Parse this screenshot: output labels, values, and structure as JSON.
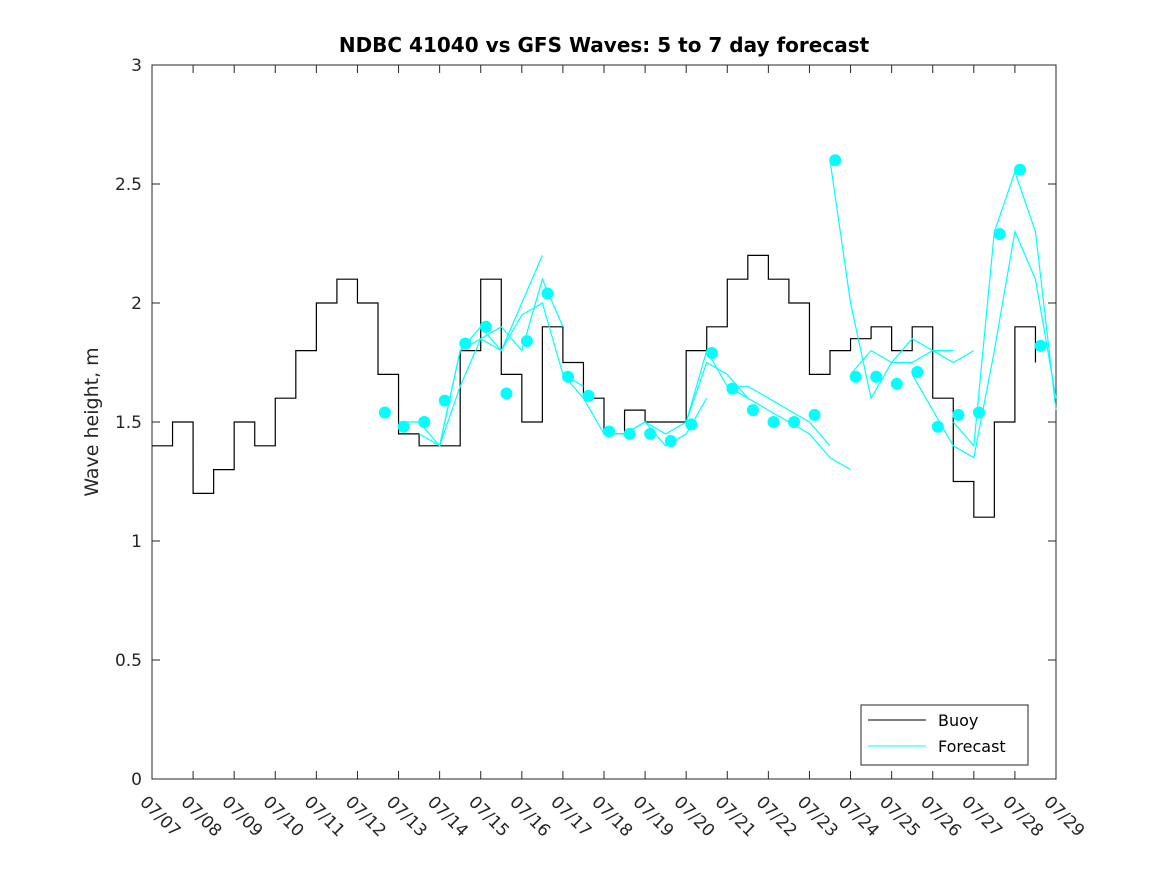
{
  "chart_data": {
    "type": "line",
    "title": "NDBC 41040 vs GFS Waves: 5 to 7 day forecast",
    "xlabel": "",
    "ylabel": "Wave height, m",
    "xlim": [
      "07/07",
      "07/29"
    ],
    "ylim": [
      0,
      3
    ],
    "x_tick_labels": [
      "07/07",
      "07/08",
      "07/09",
      "07/10",
      "07/11",
      "07/12",
      "07/13",
      "07/14",
      "07/15",
      "07/16",
      "07/17",
      "07/18",
      "07/19",
      "07/20",
      "07/21",
      "07/22",
      "07/23",
      "07/24",
      "07/25",
      "07/26",
      "07/27",
      "07/28",
      "07/29"
    ],
    "y_tick_labels": [
      "0",
      "0.5",
      "1",
      "1.5",
      "2",
      "2.5",
      "3"
    ],
    "grid": false,
    "legend": {
      "position": "bottom-right",
      "entries": [
        "Buoy",
        "Forecast"
      ]
    },
    "colors": {
      "buoy": "#000000",
      "forecast": "#00ffff"
    },
    "series": [
      {
        "name": "Buoy",
        "x": [
          "07/07 00:00",
          "07/07 12:00",
          "07/08 00:00",
          "07/08 12:00",
          "07/09 00:00",
          "07/09 12:00",
          "07/10 00:00",
          "07/10 12:00",
          "07/11 00:00",
          "07/11 12:00",
          "07/12 00:00",
          "07/12 12:00",
          "07/13 00:00",
          "07/13 12:00",
          "07/14 00:00",
          "07/14 12:00",
          "07/15 00:00",
          "07/15 12:00",
          "07/16 00:00",
          "07/16 12:00",
          "07/17 00:00",
          "07/17 12:00",
          "07/18 00:00",
          "07/18 12:00",
          "07/19 00:00",
          "07/19 12:00",
          "07/20 00:00",
          "07/20 12:00",
          "07/21 00:00",
          "07/21 12:00",
          "07/22 00:00",
          "07/22 12:00",
          "07/23 00:00",
          "07/23 12:00",
          "07/24 00:00",
          "07/24 12:00",
          "07/25 00:00",
          "07/25 12:00",
          "07/26 00:00",
          "07/26 12:00",
          "07/27 00:00",
          "07/27 12:00",
          "07/28 00:00",
          "07/28 12:00"
        ],
        "y": [
          1.4,
          1.5,
          1.2,
          1.3,
          1.5,
          1.4,
          1.6,
          1.8,
          2.0,
          2.1,
          2.0,
          1.7,
          1.45,
          1.4,
          1.4,
          1.8,
          2.1,
          1.7,
          1.5,
          1.9,
          1.75,
          1.6,
          1.45,
          1.55,
          1.5,
          1.5,
          1.8,
          1.9,
          2.1,
          2.2,
          2.1,
          2.0,
          1.7,
          1.8,
          1.85,
          1.9,
          1.8,
          1.9,
          1.6,
          1.25,
          1.1,
          1.5,
          1.9,
          1.75
        ]
      },
      {
        "name": "Forecast",
        "runs": [
          {
            "x": [
              "07/13 00:00",
              "07/13 12:00",
              "07/14 00:00",
              "07/14 12:00",
              "07/15 00:00",
              "07/15 12:00",
              "07/16 00:00",
              "07/16 12:00"
            ],
            "y": [
              1.5,
              1.5,
              1.4,
              1.8,
              1.85,
              1.8,
              2.0,
              2.2
            ]
          },
          {
            "x": [
              "07/13 12:00",
              "07/14 00:00",
              "07/14 12:00",
              "07/15 00:00",
              "07/15 12:00",
              "07/16 00:00",
              "07/16 12:00",
              "07/17 00:00"
            ],
            "y": [
              1.45,
              1.4,
              1.65,
              1.85,
              1.9,
              1.8,
              2.1,
              1.9
            ]
          },
          {
            "x": [
              "07/14 00:00",
              "07/14 12:00",
              "07/15 00:00",
              "07/15 12:00",
              "07/16 00:00",
              "07/16 12:00",
              "07/17 00:00",
              "07/17 12:00"
            ],
            "y": [
              1.4,
              1.8,
              1.9,
              1.8,
              1.95,
              2.0,
              1.7,
              1.65
            ]
          },
          {
            "x": [
              "07/17 00:00",
              "07/17 12:00",
              "07/18 00:00",
              "07/18 12:00",
              "07/19 00:00",
              "07/19 12:00",
              "07/20 00:00",
              "07/20 12:00"
            ],
            "y": [
              1.7,
              1.6,
              1.45,
              1.45,
              1.5,
              1.4,
              1.45,
              1.6
            ]
          },
          {
            "x": [
              "07/18 00:00",
              "07/18 12:00",
              "07/19 00:00",
              "07/19 12:00",
              "07/20 00:00",
              "07/20 12:00",
              "07/21 00:00",
              "07/21 12:00"
            ],
            "y": [
              1.45,
              1.45,
              1.5,
              1.45,
              1.5,
              1.75,
              1.7,
              1.6
            ]
          },
          {
            "x": [
              "07/20 00:00",
              "07/20 12:00",
              "07/21 00:00",
              "07/21 12:00",
              "07/22 00:00",
              "07/22 12:00",
              "07/23 00:00",
              "07/23 12:00"
            ],
            "y": [
              1.5,
              1.8,
              1.65,
              1.65,
              1.6,
              1.55,
              1.5,
              1.4
            ]
          },
          {
            "x": [
              "07/21 00:00",
              "07/21 12:00",
              "07/22 00:00",
              "07/22 12:00",
              "07/23 00:00",
              "07/23 12:00",
              "07/24 00:00"
            ],
            "y": [
              1.65,
              1.6,
              1.55,
              1.5,
              1.45,
              1.35,
              1.3
            ]
          },
          {
            "x": [
              "07/23 12:00",
              "07/24 00:00",
              "07/24 12:00",
              "07/25 00:00",
              "07/25 12:00",
              "07/26 00:00",
              "07/26 12:00"
            ],
            "y": [
              2.6,
              2.0,
              1.6,
              1.75,
              1.75,
              1.8,
              1.8
            ]
          },
          {
            "x": [
              "07/24 00:00",
              "07/24 12:00",
              "07/25 00:00",
              "07/25 12:00",
              "07/26 00:00",
              "07/26 12:00",
              "07/27 00:00"
            ],
            "y": [
              1.7,
              1.8,
              1.75,
              1.85,
              1.8,
              1.75,
              1.8
            ]
          },
          {
            "x": [
              "07/25 12:00",
              "07/26 00:00",
              "07/26 12:00",
              "07/27 00:00",
              "07/27 12:00",
              "07/28 00:00",
              "07/28 12:00",
              "07/29 00:00"
            ],
            "y": [
              1.7,
              1.55,
              1.4,
              1.35,
              1.8,
              2.3,
              2.1,
              1.6
            ]
          },
          {
            "x": [
              "07/26 12:00",
              "07/27 00:00",
              "07/27 12:00",
              "07/28 00:00",
              "07/28 12:00",
              "07/29 00:00"
            ],
            "y": [
              1.5,
              1.4,
              2.3,
              2.55,
              2.3,
              1.55
            ]
          }
        ],
        "markers": {
          "x": [
            "07/12 16:00",
            "07/13 03:00",
            "07/13 15:00",
            "07/14 03:00",
            "07/14 15:00",
            "07/15 03:00",
            "07/15 15:00",
            "07/16 03:00",
            "07/16 15:00",
            "07/17 03:00",
            "07/17 15:00",
            "07/18 03:00",
            "07/18 15:00",
            "07/19 03:00",
            "07/19 15:00",
            "07/20 03:00",
            "07/20 15:00",
            "07/21 03:00",
            "07/21 15:00",
            "07/22 03:00",
            "07/22 15:00",
            "07/23 03:00",
            "07/23 15:00",
            "07/24 03:00",
            "07/24 15:00",
            "07/25 03:00",
            "07/25 15:00",
            "07/26 03:00",
            "07/26 15:00",
            "07/27 03:00",
            "07/27 15:00",
            "07/28 03:00",
            "07/28 15:00"
          ],
          "y": [
            1.54,
            1.48,
            1.5,
            1.59,
            1.83,
            1.9,
            1.62,
            1.84,
            2.04,
            1.69,
            1.61,
            1.46,
            1.45,
            1.45,
            1.42,
            1.49,
            1.79,
            1.64,
            1.55,
            1.5,
            1.5,
            1.53,
            2.6,
            1.69,
            1.69,
            1.66,
            1.71,
            1.48,
            1.53,
            1.54,
            2.29,
            2.56,
            1.82
          ]
        }
      }
    ]
  }
}
